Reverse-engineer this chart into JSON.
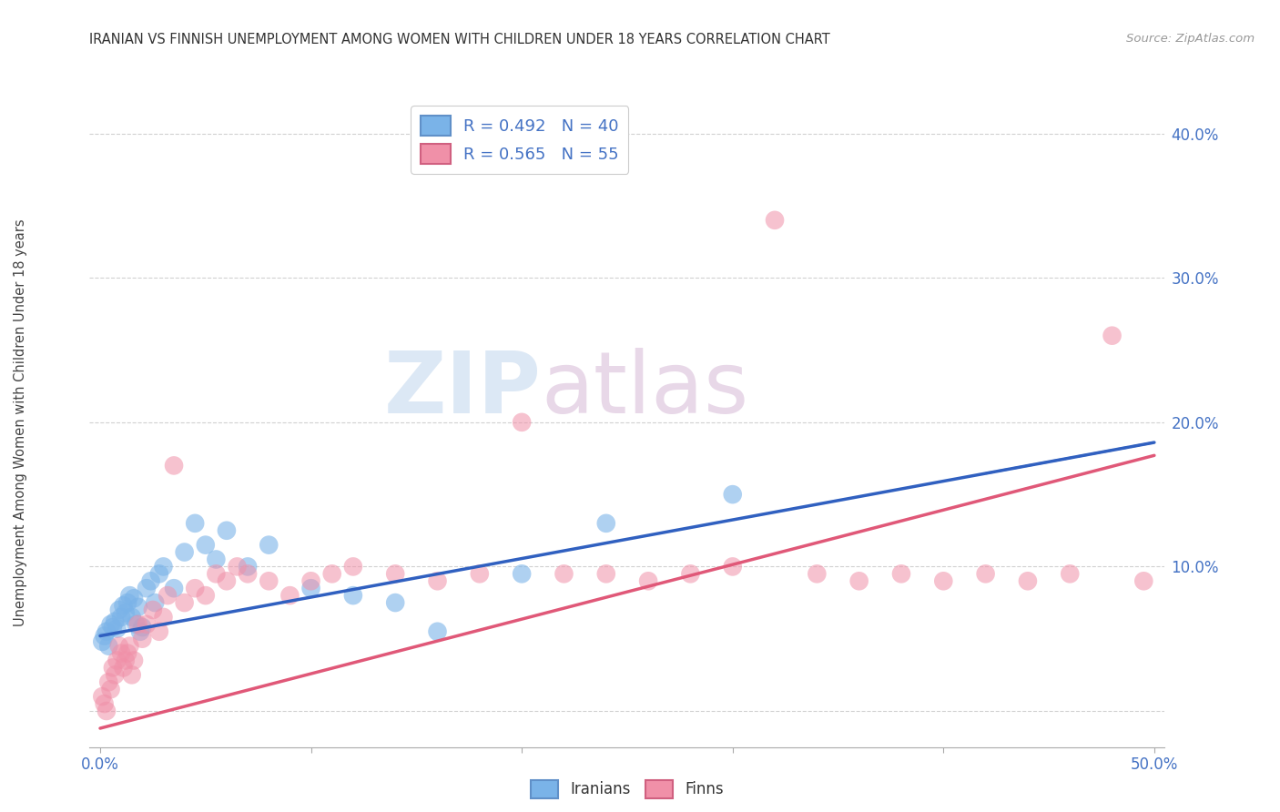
{
  "title": "IRANIAN VS FINNISH UNEMPLOYMENT AMONG WOMEN WITH CHILDREN UNDER 18 YEARS CORRELATION CHART",
  "source": "Source: ZipAtlas.com",
  "ylabel": "Unemployment Among Women with Children Under 18 years",
  "xlim": [
    0.0,
    0.5
  ],
  "ylim": [
    -0.02,
    0.42
  ],
  "iranians_color": "#7ab3e8",
  "finns_color": "#f090a8",
  "iranian_line_color": "#3060c0",
  "finn_line_color": "#e05878",
  "background_color": "#ffffff",
  "grid_color": "#cccccc",
  "watermark_zip": "ZIP",
  "watermark_atlas": "atlas",
  "iranians_x": [
    0.001,
    0.002,
    0.003,
    0.004,
    0.005,
    0.006,
    0.007,
    0.008,
    0.009,
    0.01,
    0.011,
    0.012,
    0.013,
    0.014,
    0.015,
    0.016,
    0.017,
    0.018,
    0.019,
    0.02,
    0.022,
    0.024,
    0.026,
    0.028,
    0.03,
    0.035,
    0.04,
    0.045,
    0.05,
    0.055,
    0.06,
    0.07,
    0.08,
    0.1,
    0.12,
    0.14,
    0.16,
    0.2,
    0.24,
    0.3
  ],
  "iranians_y": [
    0.048,
    0.052,
    0.055,
    0.045,
    0.06,
    0.058,
    0.062,
    0.057,
    0.07,
    0.065,
    0.073,
    0.068,
    0.075,
    0.08,
    0.065,
    0.078,
    0.06,
    0.072,
    0.055,
    0.058,
    0.085,
    0.09,
    0.075,
    0.095,
    0.1,
    0.085,
    0.11,
    0.13,
    0.115,
    0.105,
    0.125,
    0.1,
    0.115,
    0.085,
    0.08,
    0.075,
    0.055,
    0.095,
    0.13,
    0.15
  ],
  "finns_x": [
    0.001,
    0.002,
    0.003,
    0.004,
    0.005,
    0.006,
    0.007,
    0.008,
    0.009,
    0.01,
    0.011,
    0.012,
    0.013,
    0.014,
    0.015,
    0.016,
    0.018,
    0.02,
    0.022,
    0.025,
    0.028,
    0.03,
    0.032,
    0.035,
    0.04,
    0.045,
    0.05,
    0.055,
    0.06,
    0.065,
    0.07,
    0.08,
    0.09,
    0.1,
    0.11,
    0.12,
    0.14,
    0.16,
    0.18,
    0.2,
    0.22,
    0.24,
    0.26,
    0.28,
    0.3,
    0.32,
    0.34,
    0.36,
    0.38,
    0.4,
    0.42,
    0.44,
    0.46,
    0.48,
    0.495
  ],
  "finns_y": [
    0.01,
    0.005,
    0.0,
    0.02,
    0.015,
    0.03,
    0.025,
    0.035,
    0.045,
    0.04,
    0.03,
    0.035,
    0.04,
    0.045,
    0.025,
    0.035,
    0.06,
    0.05,
    0.06,
    0.07,
    0.055,
    0.065,
    0.08,
    0.17,
    0.075,
    0.085,
    0.08,
    0.095,
    0.09,
    0.1,
    0.095,
    0.09,
    0.08,
    0.09,
    0.095,
    0.1,
    0.095,
    0.09,
    0.095,
    0.2,
    0.095,
    0.095,
    0.09,
    0.095,
    0.1,
    0.34,
    0.095,
    0.09,
    0.095,
    0.09,
    0.095,
    0.09,
    0.095,
    0.26,
    0.09
  ],
  "tick_color": "#4472c4"
}
